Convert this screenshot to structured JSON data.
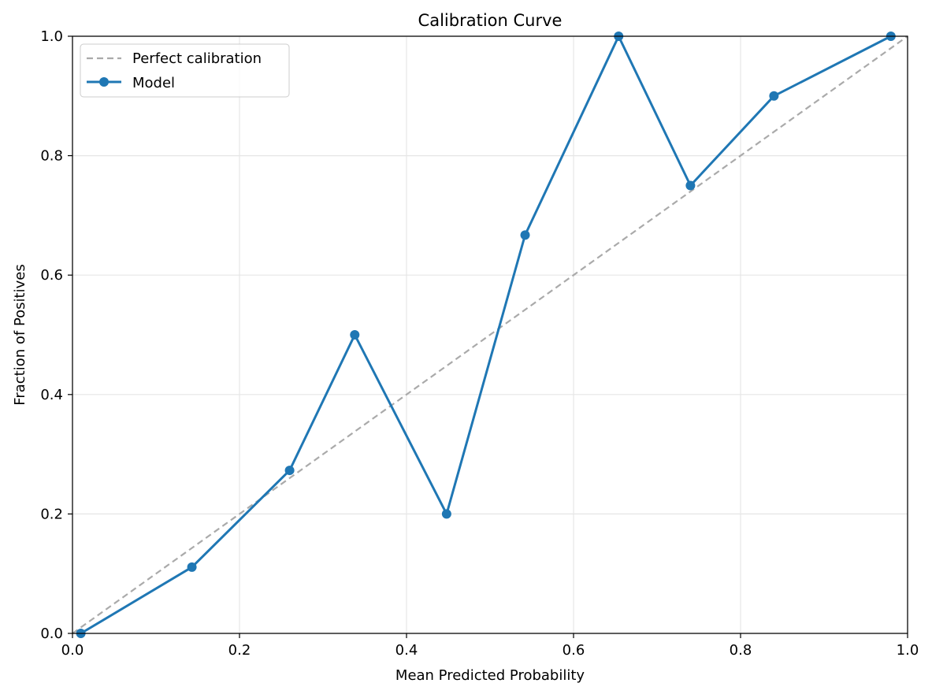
{
  "colors": {
    "model": "#1f77b4",
    "reference": "#aaaaaa",
    "grid": "#e6e6e6",
    "axes": "#000000"
  },
  "chart_data": {
    "type": "line",
    "title": "Calibration Curve",
    "xlabel": "Mean Predicted Probability",
    "ylabel": "Fraction of Positives",
    "xlim": [
      0.0,
      1.0
    ],
    "ylim": [
      0.0,
      1.0
    ],
    "xticks": [
      "0.0",
      "0.2",
      "0.4",
      "0.6",
      "0.8",
      "1.0"
    ],
    "yticks": [
      "0.0",
      "0.2",
      "0.4",
      "0.6",
      "0.8",
      "1.0"
    ],
    "grid": true,
    "legend": {
      "placement": "upper-left",
      "entries": [
        "Perfect calibration",
        "Model"
      ]
    },
    "series": [
      {
        "name": "Perfect calibration",
        "style": "dashed",
        "x": [
          0.0,
          1.0
        ],
        "y": [
          0.0,
          1.0
        ]
      },
      {
        "name": "Model",
        "style": "line-marker",
        "x": [
          0.01,
          0.143,
          0.26,
          0.338,
          0.448,
          0.542,
          0.654,
          0.74,
          0.84,
          0.98
        ],
        "y": [
          0.0,
          0.111,
          0.273,
          0.5,
          0.2,
          0.667,
          1.0,
          0.75,
          0.9,
          1.0
        ]
      }
    ]
  }
}
